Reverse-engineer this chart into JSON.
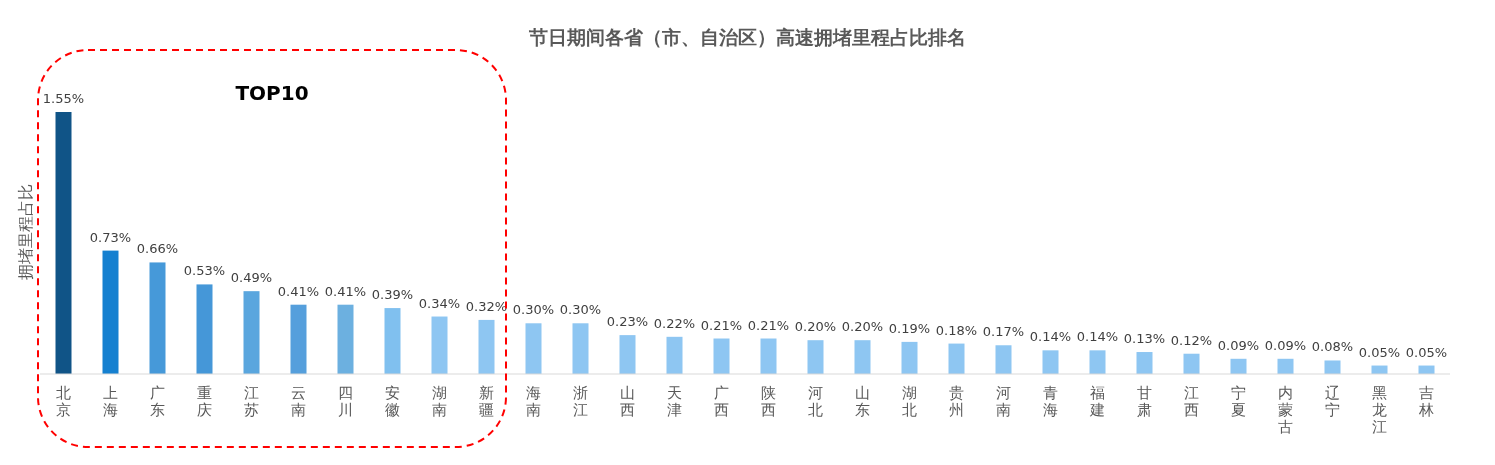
{
  "chart_data": {
    "type": "bar",
    "title": "节日期间各省（市、自治区）高速拥堵里程占比排名",
    "ylabel": "拥堵里程占比",
    "categories": [
      "北京",
      "上海",
      "广东",
      "重庆",
      "江苏",
      "云南",
      "四川",
      "安徽",
      "湖南",
      "新疆",
      "海南",
      "浙江",
      "山西",
      "天津",
      "广西",
      "陕西",
      "河北",
      "山东",
      "湖北",
      "贵州",
      "河南",
      "青海",
      "福建",
      "甘肃",
      "江西",
      "宁夏",
      "内蒙古",
      "辽宁",
      "黑龙江",
      "吉林"
    ],
    "values": [
      1.55,
      0.73,
      0.66,
      0.53,
      0.49,
      0.41,
      0.41,
      0.39,
      0.34,
      0.32,
      0.3,
      0.3,
      0.23,
      0.22,
      0.21,
      0.21,
      0.2,
      0.2,
      0.19,
      0.18,
      0.17,
      0.14,
      0.14,
      0.13,
      0.12,
      0.09,
      0.09,
      0.08,
      0.05,
      0.05
    ],
    "value_labels": [
      "1.55%",
      "0.73%",
      "0.66%",
      "0.53%",
      "0.49%",
      "0.41%",
      "0.41%",
      "0.39%",
      "0.34%",
      "0.32%",
      "0.30%",
      "0.30%",
      "0.23%",
      "0.22%",
      "0.21%",
      "0.21%",
      "0.20%",
      "0.20%",
      "0.19%",
      "0.18%",
      "0.17%",
      "0.14%",
      "0.14%",
      "0.13%",
      "0.12%",
      "0.09%",
      "0.09%",
      "0.08%",
      "0.05%",
      "0.05%"
    ],
    "colors": [
      "#105487",
      "#1580d0",
      "#4699d9",
      "#4597d8",
      "#5aa6de",
      "#559fdc",
      "#6cb0e0",
      "#80c0ef",
      "#8ec6f2",
      "#8ec6f2",
      "#8ec6f2",
      "#8ec6f2",
      "#8ec6f2",
      "#8ec6f2",
      "#8ec6f2",
      "#8ec6f2",
      "#8ec6f2",
      "#8ec6f2",
      "#8ec6f2",
      "#8ec6f2",
      "#8ec6f2",
      "#8ec6f2",
      "#8ec6f2",
      "#8ec6f2",
      "#8ec6f2",
      "#8ec6f2",
      "#8ec6f2",
      "#8ec6f2",
      "#8ec6f2",
      "#8ec6f2"
    ],
    "annotations": [
      "TOP10"
    ]
  }
}
